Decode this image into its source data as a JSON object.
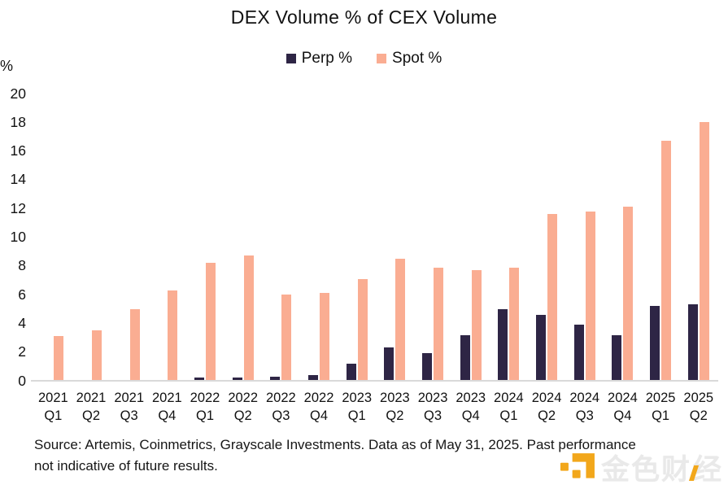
{
  "title": "DEX Volume % of CEX Volume",
  "y_axis_unit": "%",
  "footer": {
    "source_text": "Source: Artemis, Coinmetrics, Grayscale Investments. Data as of May 31, 2025. Past performance not indicative of future results."
  },
  "watermark": {
    "text_part1": "金色财",
    "text_part2": "经",
    "logo_color": "#F2A71B"
  },
  "colors": {
    "perp": "#2E2545",
    "spot": "#FAAD92",
    "axis_line": "#d9d9d9"
  },
  "chart_data": {
    "type": "bar",
    "title": "DEX Volume % of CEX Volume",
    "categories": [
      "2021 Q1",
      "2021 Q2",
      "2021 Q3",
      "2021 Q4",
      "2022 Q1",
      "2022 Q2",
      "2022 Q3",
      "2022 Q4",
      "2023 Q1",
      "2023 Q2",
      "2023 Q3",
      "2023 Q4",
      "2024 Q1",
      "2024 Q2",
      "2024 Q3",
      "2024 Q4",
      "2025 Q1",
      "2025 Q2"
    ],
    "series": [
      {
        "name": "Perp %",
        "color": "#2E2545",
        "values": [
          0,
          0,
          0,
          0,
          0.2,
          0.2,
          0.3,
          0.4,
          1.2,
          2.3,
          1.9,
          3.2,
          5.0,
          4.6,
          3.9,
          3.2,
          5.2,
          5.3
        ]
      },
      {
        "name": "Spot %",
        "color": "#FAAD92",
        "values": [
          3.1,
          3.5,
          5.0,
          6.3,
          8.2,
          8.7,
          6.0,
          6.1,
          7.1,
          8.5,
          7.9,
          7.7,
          7.9,
          11.6,
          11.8,
          12.1,
          16.7,
          18.0
        ]
      }
    ],
    "xlabel": "",
    "ylabel": "%",
    "ylim": [
      0,
      20
    ],
    "yticks": [
      0,
      2,
      4,
      6,
      8,
      10,
      12,
      14,
      16,
      18,
      20
    ],
    "grid": false,
    "legend_position": "top-center"
  }
}
